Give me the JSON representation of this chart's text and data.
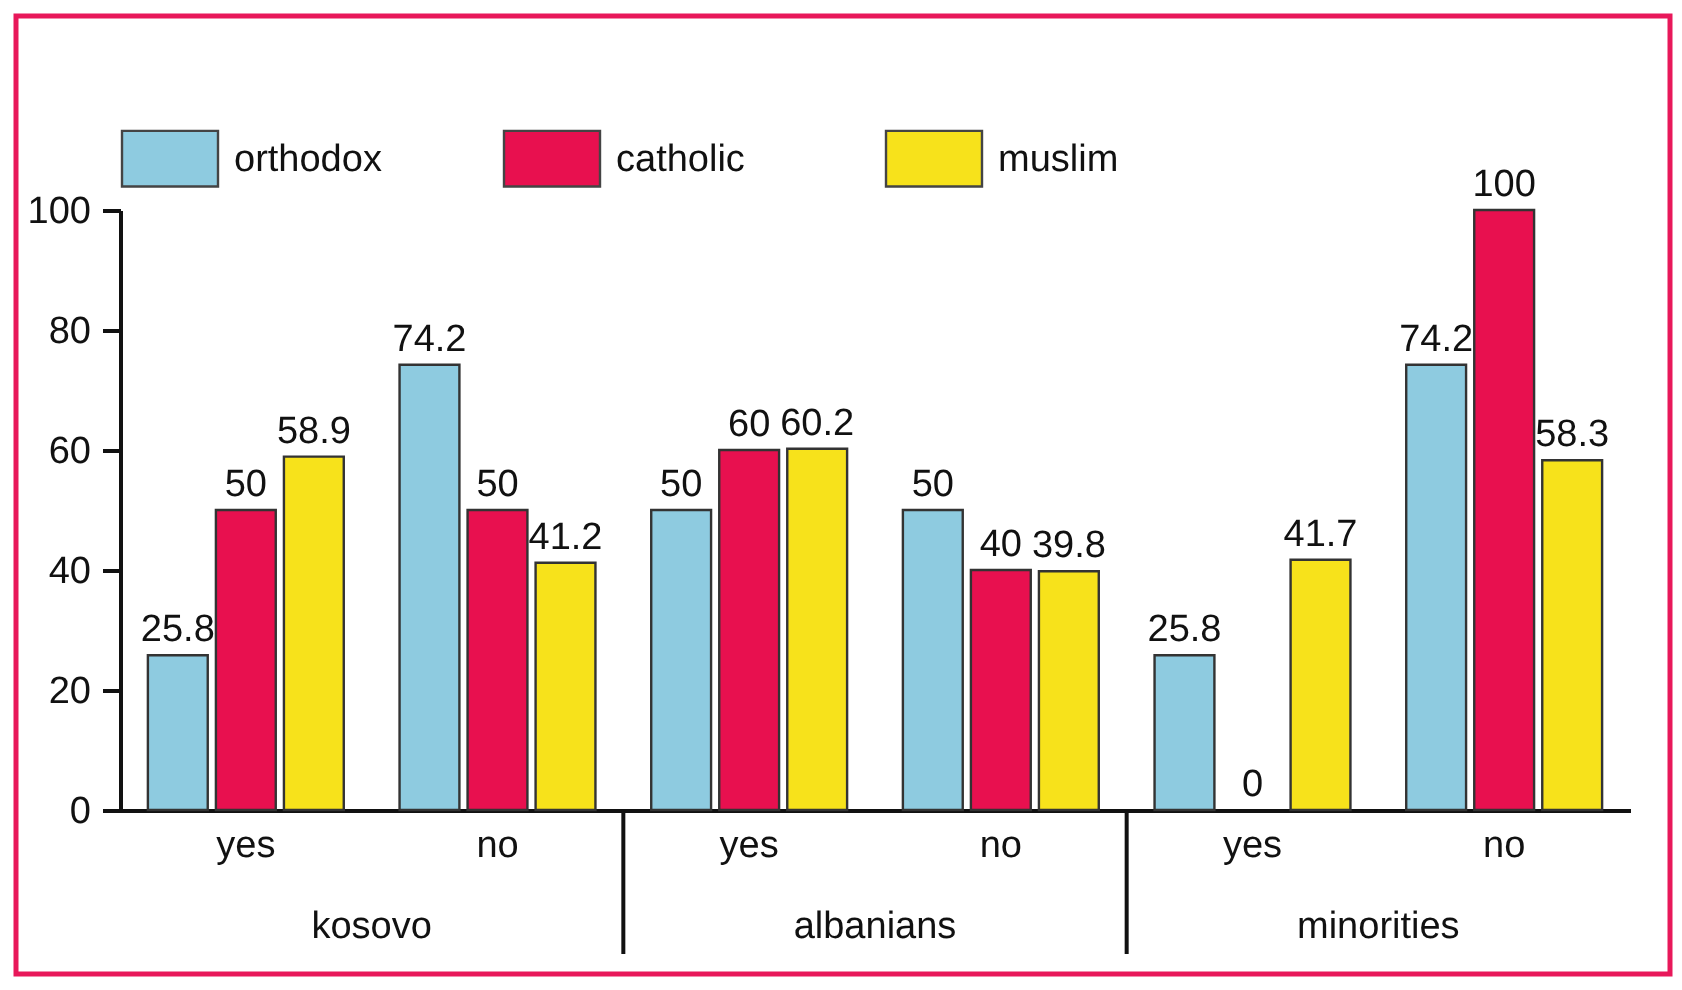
{
  "chart_data": {
    "type": "bar",
    "categories": [
      "yes",
      "no",
      "yes",
      "no",
      "yes",
      "no"
    ],
    "series": [
      {
        "name": "orthodox",
        "color": "#8ecbe0",
        "values": [
          25.8,
          74.2,
          50,
          50,
          25.8,
          74.2
        ]
      },
      {
        "name": "catholic",
        "color": "#e8104f",
        "values": [
          50,
          50,
          60,
          40,
          0,
          100
        ]
      },
      {
        "name": "muslim",
        "color": "#f7e21b",
        "values": [
          58.9,
          41.2,
          60.2,
          39.8,
          41.7,
          58.3
        ]
      }
    ],
    "annotations": [
      "kosovo",
      "albanians",
      "minorities"
    ],
    "ylim": [
      0,
      100
    ],
    "yticks": [
      0,
      20,
      40,
      60,
      80,
      100
    ],
    "data_labels": true,
    "legend": "top left"
  }
}
